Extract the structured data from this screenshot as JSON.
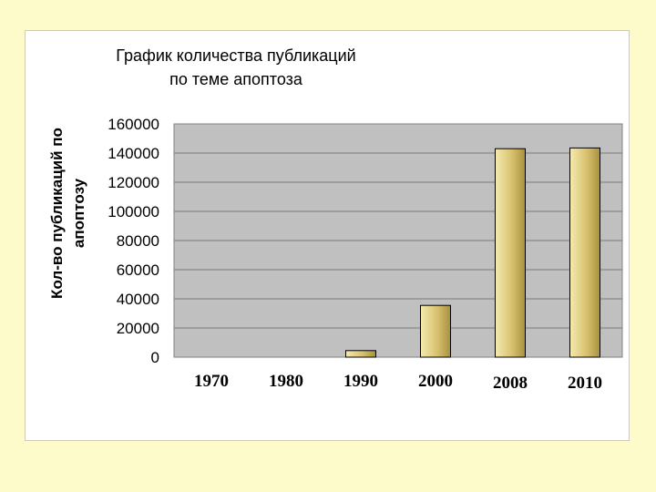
{
  "chart_data": {
    "type": "bar",
    "title": [
      "График количества публикаций",
      "по теме апоптоза"
    ],
    "ylabel": [
      "Кол-во публикаций по",
      "апоптозу"
    ],
    "xlabel": "",
    "categories": [
      "1970",
      "1980",
      "1990",
      "2000",
      "2008",
      "2010"
    ],
    "values": [
      0,
      0,
      4500,
      35500,
      143000,
      143500
    ],
    "ylim": [
      0,
      160000
    ],
    "yticks": [
      "0",
      "20000",
      "40000",
      "60000",
      "80000",
      "100000",
      "120000",
      "140000",
      "160000"
    ],
    "grid": true,
    "legend": "none"
  },
  "colors": {
    "plot_background": "#c0c0c0",
    "bar_light": "#f4eab0",
    "bar_mid": "#d8c270",
    "bar_dark": "#a8913e",
    "bar_outline": "#000000",
    "page_background": "#fdfbc9"
  }
}
